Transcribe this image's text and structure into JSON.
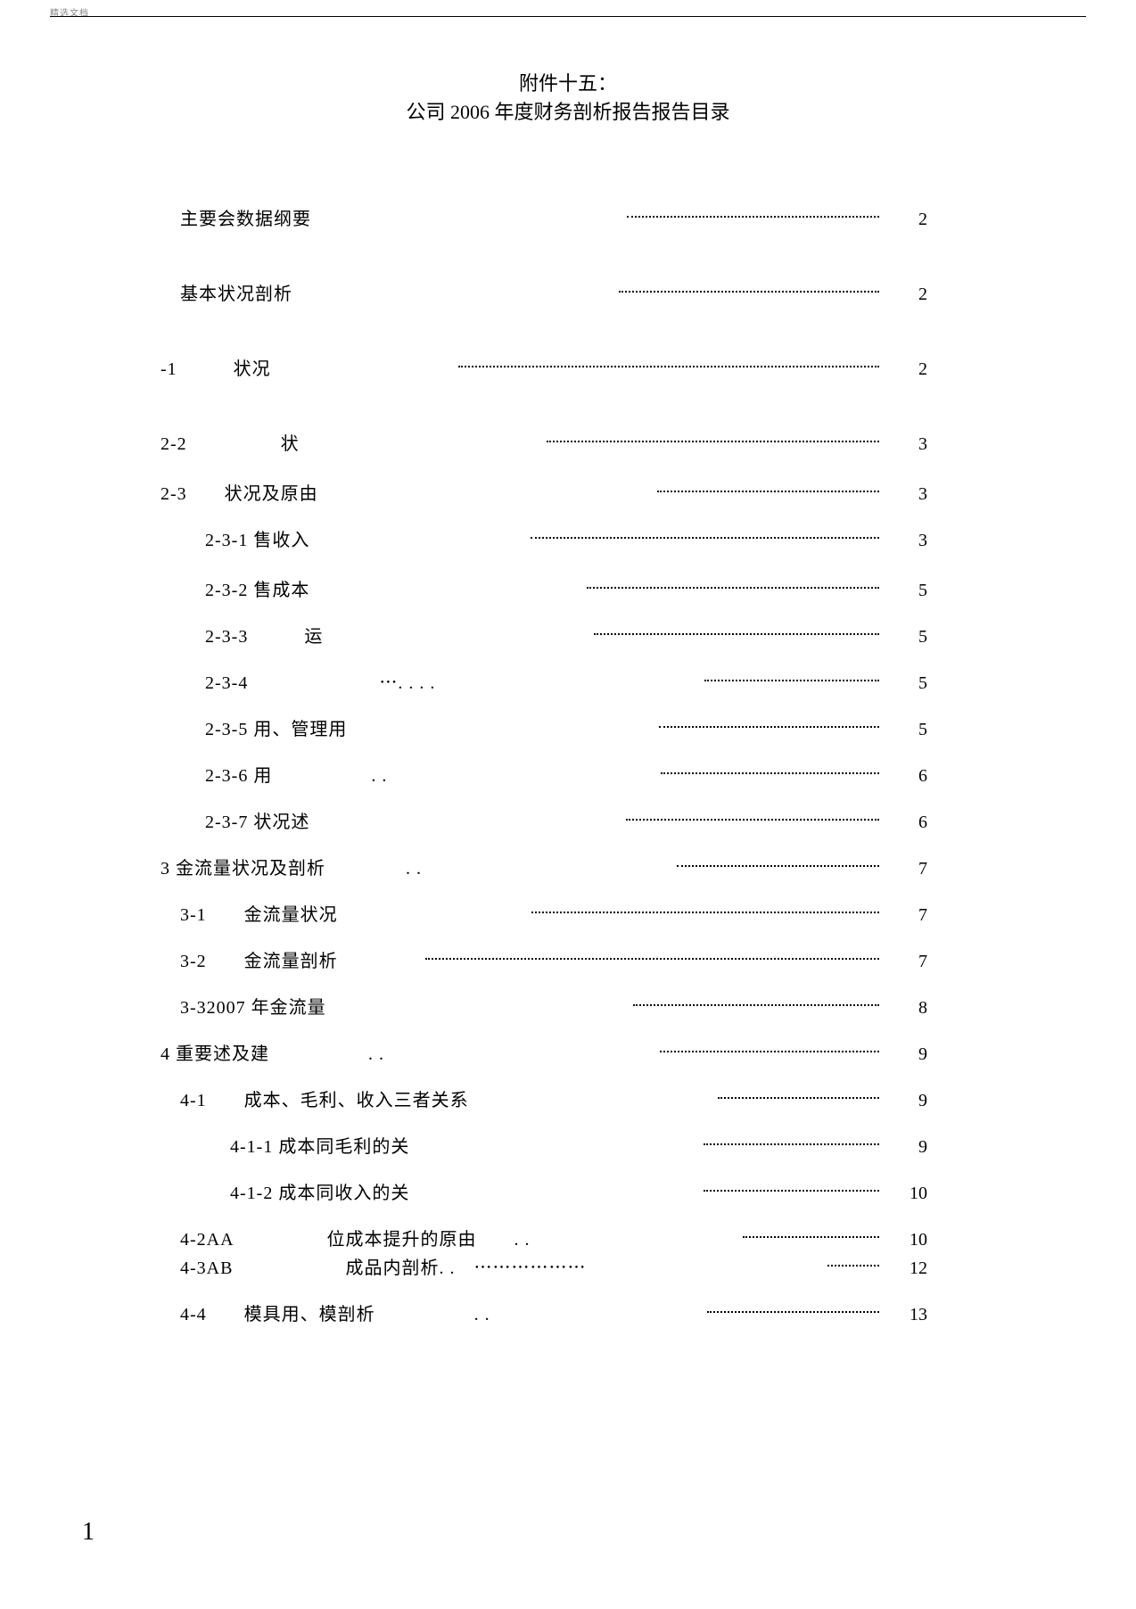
{
  "header_label": "精选文档",
  "title_line1": "附件十五：",
  "title_line2": "公司 2006 年度财务剖析报告报告目录",
  "toc": [
    {
      "label": "主要会数据纲要",
      "page": "2",
      "indent": 1,
      "lead_start": "55%",
      "gap": "large"
    },
    {
      "label": "基本状况剖析",
      "page": "2",
      "indent": 1,
      "lead_start": "55%",
      "gap": "large"
    },
    {
      "label": "-1　　　状况",
      "page": "2",
      "indent": 0,
      "lead_start": "30%",
      "gap": "large"
    },
    {
      "label": "2-2　　　　　状",
      "page": "3",
      "indent": 0,
      "lead_start": "42%",
      "gap": "med"
    },
    {
      "label": "2-3　　状况及原由",
      "page": "3",
      "indent": 0,
      "lead_start": "60%",
      "gap": ""
    },
    {
      "label": "2-3-1 售收入",
      "page": "3",
      "indent": 2,
      "lead_start": "38%",
      "gap": "med"
    },
    {
      "label": "2-3-2 售成本",
      "page": "5",
      "indent": 2,
      "lead_start": "48%",
      "gap": ""
    },
    {
      "label": "2-3-3　　　运",
      "page": "5",
      "indent": 2,
      "lead_start": "48%",
      "gap": ""
    },
    {
      "label": "2-3-4　　　　　　　⋯. . . .",
      "page": "5",
      "indent": 2,
      "lead_start": "60%",
      "gap": ""
    },
    {
      "label": "2-3-5 用、管理用",
      "page": "5",
      "indent": 2,
      "lead_start": "58%",
      "gap": ""
    },
    {
      "label": "2-3-6 用　　　　　 . .",
      "page": "6",
      "indent": 2,
      "lead_start": "55%",
      "gap": ""
    },
    {
      "label": "2-3-7 状况述",
      "page": "6",
      "indent": 2,
      "lead_start": "55%",
      "gap": ""
    },
    {
      "label": "3 金流量状况及剖析　　　　 . .",
      "page": "7",
      "indent": 0,
      "lead_start": "55%",
      "gap": ""
    },
    {
      "label": "3-1　　金流量状况",
      "page": "7",
      "indent": 1,
      "lead_start": "35%",
      "gap": ""
    },
    {
      "label": "3-2　　金流量剖析",
      "page": "7",
      "indent": 1,
      "lead_start": "15%",
      "gap": ""
    },
    {
      "label": "3-32007 年金流量",
      "page": "8",
      "indent": 1,
      "lead_start": "55%",
      "gap": ""
    },
    {
      "label": "4 重要述及建　　　　　 . .",
      "page": "9",
      "indent": 0,
      "lead_start": "55%",
      "gap": ""
    },
    {
      "label": "4-1　　成本、毛利、收入三者关系",
      "page": "9",
      "indent": 1,
      "lead_start": "60%",
      "gap": ""
    },
    {
      "label": "4-1-1 成本同毛利的关",
      "page": "9",
      "indent": 3,
      "lead_start": "62%",
      "gap": ""
    },
    {
      "label": "4-1-2 成本同收入的关",
      "page": "10",
      "indent": 3,
      "lead_start": "62%",
      "gap": ""
    },
    {
      "label": "4-2AA　　　　　位成本提升的原由　　. .",
      "page": "10",
      "indent": 1,
      "lead_start": "60%",
      "gap": "tight"
    },
    {
      "label": "4-3AB　　　　　　成品内剖析. .　⋯⋯⋯⋯⋯⋯",
      "page": "12",
      "indent": 1,
      "lead_start": "82%",
      "gap": ""
    },
    {
      "label": "4-4　　模具用、模剖析　　　　　 . .",
      "page": "13",
      "indent": 1,
      "lead_start": "55%",
      "gap": ""
    }
  ],
  "page_number": "1"
}
